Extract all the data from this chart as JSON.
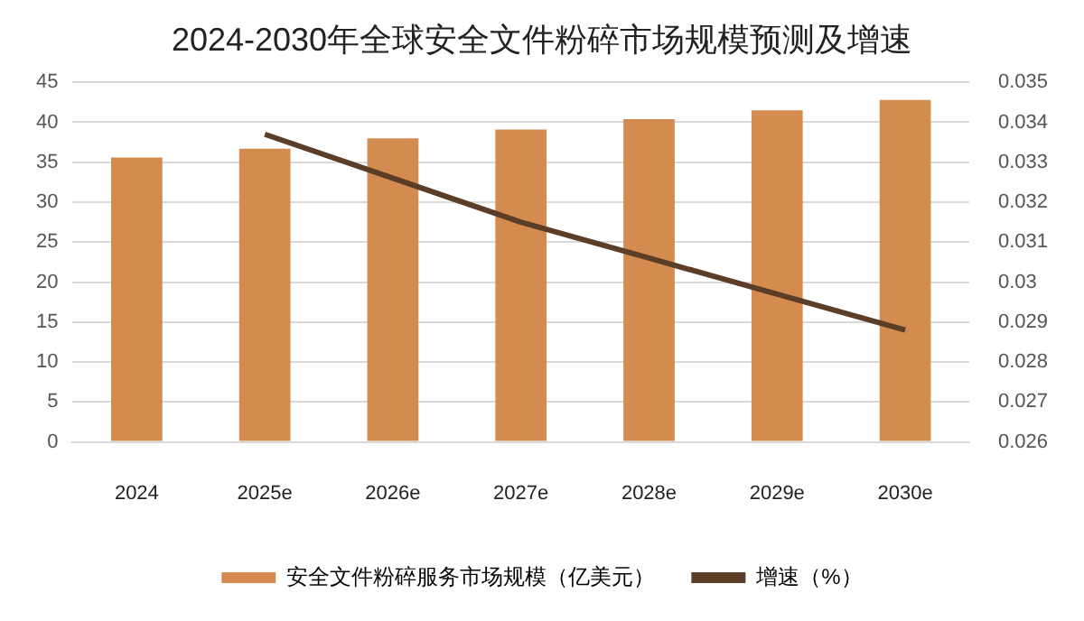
{
  "chart_data": {
    "type": "bar",
    "title": "2024-2030年全球安全文件粉碎市场规模预测及增速",
    "categories": [
      "2024",
      "2025e",
      "2026e",
      "2027e",
      "2028e",
      "2029e",
      "2030e"
    ],
    "series": [
      {
        "name": "安全文件粉碎服务市场规模（亿美元）",
        "color": "#d38b4f",
        "values": [
          35.6,
          36.7,
          38.0,
          39.1,
          40.4,
          41.5,
          42.8
        ]
      },
      {
        "name": "增速（%）",
        "type": "line",
        "axis": "y2",
        "color": "#5c3d26",
        "values": [
          null,
          0.0337,
          0.0326,
          0.0315,
          0.0306,
          0.0297,
          0.0288
        ]
      }
    ],
    "ylim": [
      0,
      45
    ],
    "yticks": [
      0,
      5,
      10,
      15,
      20,
      25,
      30,
      35,
      40,
      45
    ],
    "y2lim": [
      0.026,
      0.035
    ],
    "y2ticks": [
      0.026,
      0.027,
      0.028,
      0.029,
      0.03,
      0.031,
      0.032,
      0.033,
      0.034,
      0.035
    ],
    "grid": "y",
    "legend": "bottom",
    "marker": "none"
  }
}
